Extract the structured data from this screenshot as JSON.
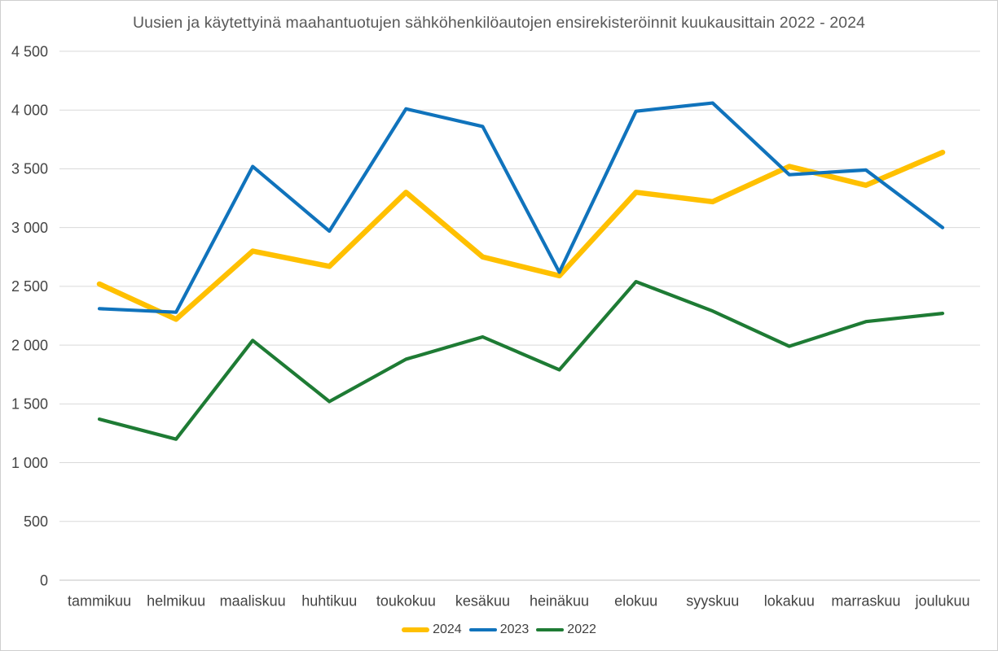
{
  "chart_data": {
    "type": "line",
    "title": "Uusien ja käytettyinä maahantuotujen sähköhenkilöautojen ensirekisteröinnit kuukausittain 2022 - 2024",
    "categories": [
      "tammikuu",
      "helmikuu",
      "maaliskuu",
      "huhtikuu",
      "toukokuu",
      "kesäkuu",
      "heinäkuu",
      "elokuu",
      "syyskuu",
      "lokakuu",
      "marraskuu",
      "joulukuu"
    ],
    "series": [
      {
        "name": "2024",
        "color": "#FFC000",
        "stroke_width": 6.5,
        "values": [
          2520,
          2220,
          2800,
          2670,
          3300,
          2750,
          2590,
          3300,
          3220,
          3520,
          3360,
          3640
        ]
      },
      {
        "name": "2023",
        "color": "#1073BC",
        "stroke_width": 4.2,
        "values": [
          2310,
          2280,
          3520,
          2970,
          4010,
          3860,
          2620,
          3990,
          4060,
          3450,
          3490,
          3000
        ]
      },
      {
        "name": "2022",
        "color": "#1E7B34",
        "stroke_width": 4.2,
        "values": [
          1370,
          1200,
          2040,
          1520,
          1880,
          2070,
          1790,
          2540,
          2290,
          1990,
          2200,
          2270
        ]
      }
    ],
    "ylim": [
      0,
      4500
    ],
    "y_ticks": [
      {
        "v": 0,
        "label": "0"
      },
      {
        "v": 500,
        "label": "500"
      },
      {
        "v": 1000,
        "label": "1 000"
      },
      {
        "v": 1500,
        "label": "1 500"
      },
      {
        "v": 2000,
        "label": "2 000"
      },
      {
        "v": 2500,
        "label": "2 500"
      },
      {
        "v": 3000,
        "label": "3 000"
      },
      {
        "v": 3500,
        "label": "3 500"
      },
      {
        "v": 4000,
        "label": "4 000"
      },
      {
        "v": 4500,
        "label": "4 500"
      }
    ],
    "grid": true,
    "legend_position": "bottom",
    "colors": {
      "title_text": "#595959",
      "axis_text": "#444444",
      "legend_text": "#404040",
      "gridline": "#D9D9D9",
      "zero_line": "#C3C3C3",
      "background": "#FFFFFF"
    }
  }
}
